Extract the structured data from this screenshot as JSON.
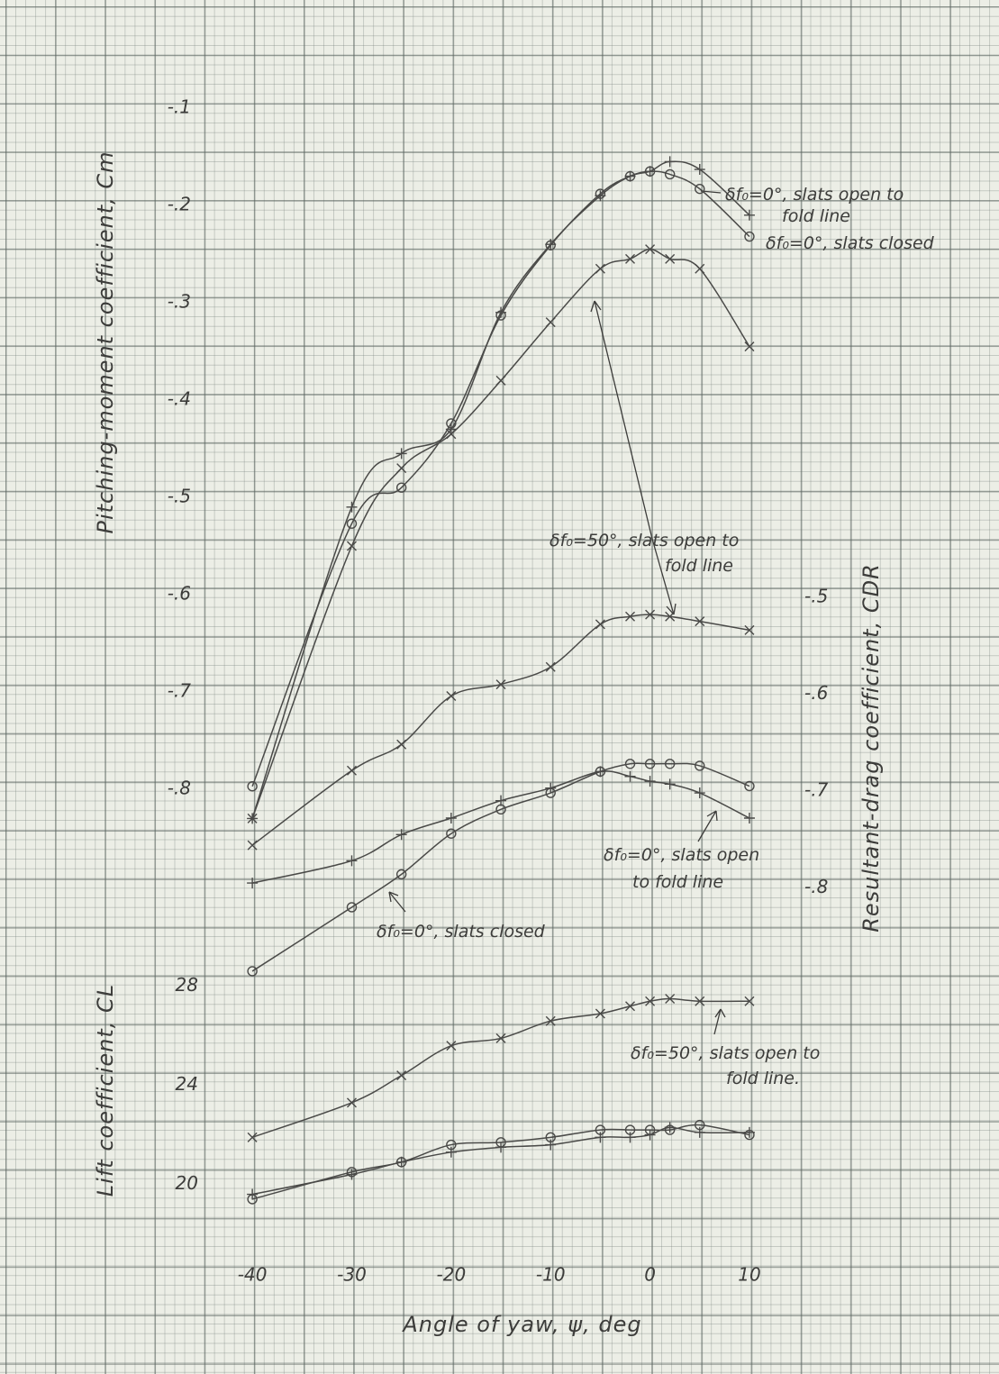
{
  "chart_data": [
    {
      "type": "line",
      "y_label": "Pitching-moment coefficient, Cm",
      "x": [
        -40,
        -30,
        -25,
        -20,
        -15,
        -10,
        -5,
        -2,
        0,
        2,
        5,
        10
      ],
      "xlim": [
        -43,
        11
      ],
      "ylim": [
        -0.9,
        -0.05
      ],
      "yticks": [
        {
          "value": -0.1,
          "label": "-.1"
        },
        {
          "value": -0.2,
          "label": "-.2"
        },
        {
          "value": -0.3,
          "label": "-.3"
        },
        {
          "value": -0.4,
          "label": "-.4"
        },
        {
          "value": -0.5,
          "label": "-.5"
        },
        {
          "value": -0.6,
          "label": "-.6"
        },
        {
          "value": -0.7,
          "label": "-.7"
        },
        {
          "value": -0.8,
          "label": "-.8"
        }
      ],
      "series": [
        {
          "marker": "o",
          "color": "#4a4a48",
          "values": [
            -0.797,
            -0.527,
            -0.49,
            -0.424,
            -0.313,
            -0.241,
            -0.188,
            -0.17,
            -0.165,
            -0.168,
            -0.183,
            -0.232
          ]
        },
        {
          "marker": "+",
          "color": "#4a4a48",
          "values": [
            -0.83,
            -0.51,
            -0.455,
            -0.43,
            -0.31,
            -0.24,
            -0.19,
            -0.17,
            -0.165,
            -0.155,
            -0.163,
            -0.21
          ]
        },
        {
          "marker": "x",
          "color": "#4a4a48",
          "values": [
            -0.83,
            -0.55,
            -0.47,
            -0.435,
            -0.38,
            -0.32,
            -0.265,
            -0.255,
            -0.245,
            -0.255,
            -0.265,
            -0.345
          ]
        }
      ],
      "annotations": [
        {
          "lines": [
            "δf₀=0°, slats open to",
            "fold line"
          ]
        },
        {
          "lines": [
            "δf₀=0°, slats closed"
          ]
        },
        {
          "lines": [
            "δf₀=50°, slats open to",
            "fold line"
          ]
        }
      ]
    },
    {
      "type": "line",
      "y_label": "Resultant-drag coefficient, CDR",
      "x": [
        -40,
        -30,
        -25,
        -20,
        -15,
        -10,
        -5,
        -2,
        0,
        2,
        5,
        10
      ],
      "xlim": [
        -43,
        11
      ],
      "ylim": [
        -0.9,
        -0.45
      ],
      "yticks": [
        {
          "value": -0.5,
          "label": "-.5"
        },
        {
          "value": -0.6,
          "label": "-.6"
        },
        {
          "value": -0.7,
          "label": "-.7"
        },
        {
          "value": -0.8,
          "label": "-.8"
        }
      ],
      "series": [
        {
          "marker": "x",
          "color": "#4a4a48",
          "values": [
            -0.756,
            -0.679,
            -0.652,
            -0.602,
            -0.59,
            -0.572,
            -0.528,
            -0.52,
            -0.518,
            -0.52,
            -0.525,
            -0.534
          ]
        },
        {
          "marker": "+",
          "color": "#4a4a48",
          "values": [
            -0.795,
            -0.772,
            -0.745,
            -0.728,
            -0.71,
            -0.697,
            -0.68,
            -0.685,
            -0.69,
            -0.693,
            -0.702,
            -0.728
          ]
        },
        {
          "marker": "o",
          "color": "#4a4a48",
          "values": [
            -0.886,
            -0.82,
            -0.786,
            -0.744,
            -0.719,
            -0.702,
            -0.68,
            -0.672,
            -0.672,
            -0.672,
            -0.674,
            -0.695
          ]
        }
      ],
      "annotations": [
        {
          "lines": [
            "δf₀=0°, slats open",
            "to fold line"
          ]
        },
        {
          "lines": [
            "δf₀=0°, slats closed"
          ]
        }
      ]
    },
    {
      "type": "line",
      "y_label": "Lift coefficient, CL",
      "x_label": "Angle of yaw, ψ, deg",
      "x": [
        -40,
        -30,
        -25,
        -20,
        -15,
        -10,
        -5,
        -2,
        0,
        2,
        5,
        10
      ],
      "xlim": [
        -43,
        11
      ],
      "xticks": [
        -40,
        -30,
        -20,
        -10,
        0,
        10
      ],
      "ylim": [
        19,
        28.5
      ],
      "yticks": [
        20,
        24,
        28
      ],
      "series": [
        {
          "marker": "x",
          "color": "#4a4a48",
          "values": [
            21.9,
            23.3,
            24.4,
            25.6,
            25.9,
            26.6,
            26.9,
            27.2,
            27.4,
            27.5,
            27.4,
            27.4
          ]
        },
        {
          "marker": "o",
          "color": "#4a4a48",
          "values": [
            19.4,
            20.5,
            20.9,
            21.6,
            21.7,
            21.9,
            22.2,
            22.2,
            22.2,
            22.2,
            22.4,
            22.0
          ]
        },
        {
          "marker": "+",
          "color": "#4a4a48",
          "values": [
            19.6,
            20.4,
            20.9,
            21.3,
            21.5,
            21.6,
            21.9,
            21.9,
            22.0,
            22.3,
            22.1,
            22.1
          ]
        }
      ],
      "annotations": [
        {
          "lines": [
            "δf₀=50°, slats open to",
            "fold line."
          ]
        }
      ]
    }
  ]
}
